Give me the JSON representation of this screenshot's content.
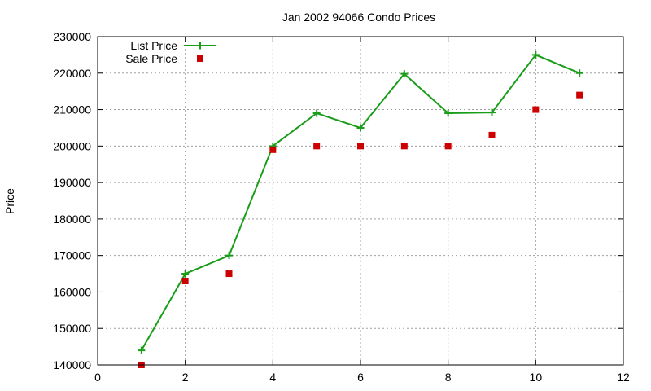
{
  "chart_data": {
    "type": "line",
    "title": "Jan 2002 94066 Condo Prices",
    "xlabel": "",
    "ylabel": "Price",
    "xlim": [
      0,
      12
    ],
    "ylim": [
      140000,
      230000
    ],
    "xticks": [
      0,
      2,
      4,
      6,
      8,
      10,
      12
    ],
    "yticks": [
      140000,
      150000,
      160000,
      170000,
      180000,
      190000,
      200000,
      210000,
      220000,
      230000
    ],
    "grid": true,
    "legend_position": "top-left",
    "series": [
      {
        "name": "List Price",
        "style": "line-with-plus-markers",
        "color": "#1a9e1a",
        "x": [
          1,
          2,
          3,
          4,
          5,
          6,
          7,
          8,
          9,
          10,
          11
        ],
        "y": [
          144000,
          165000,
          170000,
          200000,
          209000,
          205000,
          219800,
          209000,
          209200,
          225000,
          220000
        ]
      },
      {
        "name": "Sale Price",
        "style": "square-markers",
        "color": "#cc0000",
        "x": [
          1,
          2,
          3,
          4,
          5,
          6,
          7,
          8,
          9,
          10,
          11
        ],
        "y": [
          140000,
          163000,
          165000,
          199000,
          200000,
          200000,
          200000,
          200000,
          203000,
          210000,
          214000
        ]
      }
    ]
  }
}
